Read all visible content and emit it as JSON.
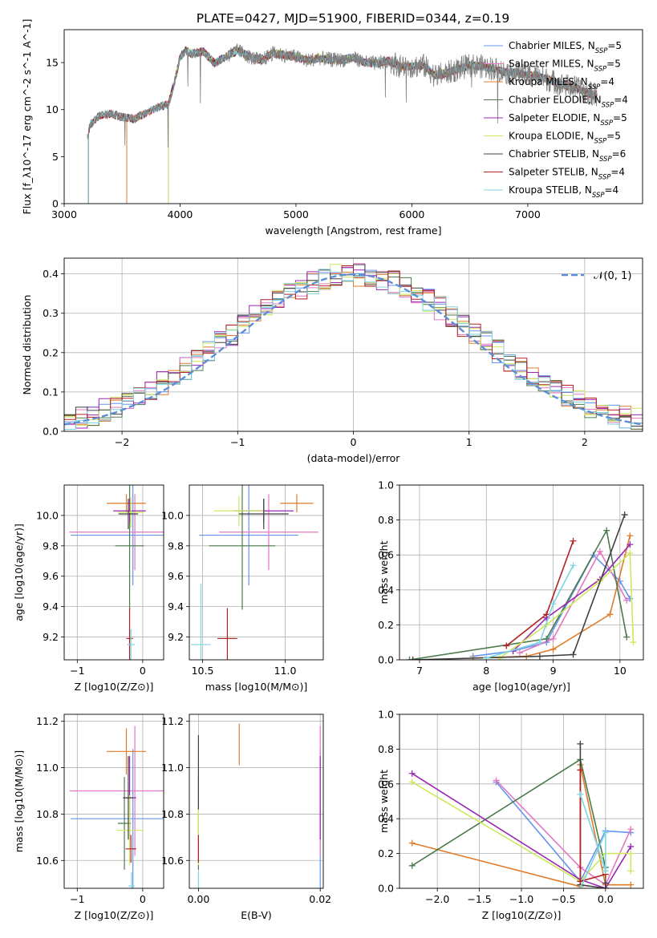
{
  "figure": {
    "title": "PLATE=0427, MJD=51900, FIBERID=0344, z=0.19"
  },
  "chart_data": [
    {
      "id": "spectrum",
      "type": "line",
      "xlabel": "wavelength [Angstrom, rest frame]",
      "ylabel": "Flux [f_λ10^-17 erg cm^-2 s^-1 A^-1]",
      "xlim": [
        3000,
        7990
      ],
      "ylim": [
        0,
        18.5
      ],
      "xticks": [
        3000,
        4000,
        5000,
        6000,
        7000
      ],
      "yticks": [
        0,
        5,
        10,
        15
      ],
      "grid": false,
      "legend_position": "right",
      "observed": {
        "x": [
          3200,
          3225,
          3300,
          3400,
          3500,
          3600,
          3700,
          3800,
          3900,
          3950,
          4000,
          4050,
          4100,
          4200,
          4300,
          4400,
          4500,
          4600,
          4700,
          4800,
          4900,
          5000,
          5100,
          5200,
          5300,
          5400,
          5500,
          5600,
          5700,
          5800,
          5900,
          6000,
          6100,
          6200,
          6300,
          6400,
          6500,
          6600,
          6700,
          6800,
          6900,
          7000,
          7100,
          7200,
          7300,
          7400,
          7500,
          7600
        ],
        "y": [
          7.2,
          8.4,
          9.3,
          9.6,
          9.2,
          9.0,
          9.6,
          10.2,
          10.6,
          12.8,
          15.6,
          16.3,
          15.9,
          16.2,
          14.9,
          15.7,
          16.3,
          15.6,
          15.2,
          16.0,
          15.8,
          15.6,
          15.2,
          15.5,
          15.3,
          15.3,
          15.5,
          15.0,
          14.9,
          15.2,
          14.6,
          14.6,
          14.7,
          13.6,
          13.9,
          14.3,
          14.7,
          14.6,
          14.4,
          14.0,
          13.9,
          13.7,
          13.5,
          13.1,
          12.6,
          12.4,
          11.8,
          11.6
        ]
      },
      "series": [
        {
          "name": "Chabrier MILES, N_SSP=5",
          "color": "#6495ed",
          "start": 3540
        },
        {
          "name": "Salpeter MILES, N_SSP=5",
          "color": "#e377c2",
          "start": 3540
        },
        {
          "name": "Kroupa MILES, N_SSP=4",
          "color": "#e07b2a",
          "start": 3540
        },
        {
          "name": "Chabrier ELODIE, N_SSP=4",
          "color": "#4c7a4c",
          "start": 3900
        },
        {
          "name": "Salpeter ELODIE, N_SSP=5",
          "color": "#9b27b0",
          "start": 3900
        },
        {
          "name": "Kroupa ELODIE, N_SSP=5",
          "color": "#cde85c",
          "start": 3900
        },
        {
          "name": "Chabrier STELIB, N_SSP=6",
          "color": "#404040",
          "start": 3210
        },
        {
          "name": "Salpeter STELIB, N_SSP=4",
          "color": "#b22222",
          "start": 3210
        },
        {
          "name": "Kroupa STELIB, N_SSP=4",
          "color": "#7fd4e0",
          "start": 3210
        }
      ]
    },
    {
      "id": "residuals",
      "type": "bar",
      "xlabel": "(data-model)/error",
      "ylabel": "Normed distribution",
      "xlim": [
        -2.5,
        2.5
      ],
      "ylim": [
        0,
        0.44
      ],
      "xticks": [
        -2,
        -1,
        0,
        1,
        2
      ],
      "yticks": [
        0.0,
        0.1,
        0.2,
        0.3,
        0.4
      ],
      "grid": true,
      "legend": "𝒩(0, 1)",
      "legend_position": "top-right",
      "bin_width": 0.1,
      "bin_start": -2.5
    },
    {
      "id": "age_vs_Z",
      "type": "scatter",
      "xlabel": "Z [log10(Z/Z⊙)]",
      "ylabel": "age  [log10(age/yr)]",
      "xlim": [
        -1.2,
        0.32
      ],
      "ylim": [
        9.05,
        10.2
      ],
      "xticks": [
        -1,
        0
      ],
      "yticks": [
        9.2,
        9.4,
        9.6,
        9.8,
        10.0
      ],
      "grid": true,
      "points": [
        {
          "x": -0.15,
          "y": 9.87,
          "xerr": 0.95,
          "yerr": 0.33,
          "color": "#6495ed"
        },
        {
          "x": -0.12,
          "y": 9.89,
          "xerr": 1.0,
          "yerr": 0.25,
          "color": "#e377c2"
        },
        {
          "x": -0.25,
          "y": 10.08,
          "xerr": 0.3,
          "yerr": 0.06,
          "color": "#e07b2a"
        },
        {
          "x": -0.2,
          "y": 9.8,
          "xerr": 0.22,
          "yerr": 0.42,
          "color": "#4c7a4c"
        },
        {
          "x": -0.2,
          "y": 10.03,
          "xerr": 0.25,
          "yerr": 0.08,
          "color": "#9b27b0"
        },
        {
          "x": -0.18,
          "y": 10.02,
          "xerr": 0.2,
          "yerr": 0.1,
          "color": "#cde85c"
        },
        {
          "x": -0.22,
          "y": 10.01,
          "xerr": 0.15,
          "yerr": 0.1,
          "color": "#404040"
        },
        {
          "x": -0.2,
          "y": 9.19,
          "xerr": 0.05,
          "yerr": 0.2,
          "color": "#b22222"
        },
        {
          "x": -0.18,
          "y": 9.15,
          "xerr": 0.06,
          "yerr": 0.1,
          "color": "#7fd4e0"
        }
      ]
    },
    {
      "id": "age_vs_mass",
      "type": "scatter",
      "xlabel": "mass [log10(M/M⊙)]",
      "ylabel": "",
      "xlim": [
        10.42,
        11.23
      ],
      "ylim": [
        9.05,
        10.2
      ],
      "xticks": [
        10.5,
        11.0
      ],
      "yticks": [
        9.2,
        9.4,
        9.6,
        9.8,
        10.0
      ],
      "grid": true,
      "points": [
        {
          "x": 10.78,
          "y": 9.87,
          "xerr": 0.3,
          "yerr": 0.33,
          "color": "#6495ed"
        },
        {
          "x": 10.9,
          "y": 9.89,
          "xerr": 0.3,
          "yerr": 0.25,
          "color": "#e377c2"
        },
        {
          "x": 11.07,
          "y": 10.08,
          "xerr": 0.1,
          "yerr": 0.06,
          "color": "#e07b2a"
        },
        {
          "x": 10.74,
          "y": 9.8,
          "xerr": 0.2,
          "yerr": 0.42,
          "color": "#4c7a4c"
        },
        {
          "x": 10.87,
          "y": 10.03,
          "xerr": 0.18,
          "yerr": 0.08,
          "color": "#9b27b0"
        },
        {
          "x": 10.72,
          "y": 10.03,
          "xerr": 0.15,
          "yerr": 0.1,
          "color": "#cde85c"
        },
        {
          "x": 10.87,
          "y": 10.01,
          "xerr": 0.15,
          "yerr": 0.1,
          "color": "#404040"
        },
        {
          "x": 10.65,
          "y": 9.19,
          "xerr": 0.06,
          "yerr": 0.2,
          "color": "#b22222"
        },
        {
          "x": 10.49,
          "y": 9.15,
          "xerr": 0.06,
          "yerr": 0.4,
          "color": "#7fd4e0"
        }
      ]
    },
    {
      "id": "weight_vs_age",
      "type": "line",
      "xlabel": "age  [log10(age/yr)]",
      "ylabel": "mass weight",
      "xlim": [
        6.7,
        10.35
      ],
      "ylim": [
        0,
        1.0
      ],
      "xticks": [
        7,
        8,
        9,
        10
      ],
      "yticks": [
        0.0,
        0.2,
        0.4,
        0.6,
        0.8,
        1.0
      ],
      "grid": true,
      "series": [
        {
          "color": "#6495ed",
          "x": [
            7.8,
            8.4,
            8.9,
            9.6,
            10.0,
            10.15
          ],
          "y": [
            0.02,
            0.05,
            0.1,
            0.6,
            0.45,
            0.35
          ]
        },
        {
          "color": "#e377c2",
          "x": [
            8.5,
            9.0,
            9.7,
            10.1
          ],
          "y": [
            0.04,
            0.12,
            0.62,
            0.34
          ]
        },
        {
          "color": "#e07b2a",
          "x": [
            7.8,
            8.6,
            9.0,
            9.85,
            10.15
          ],
          "y": [
            0.01,
            0.02,
            0.06,
            0.26,
            0.71
          ]
        },
        {
          "color": "#4c7a4c",
          "x": [
            6.85,
            8.9,
            9.8,
            10.1
          ],
          "y": [
            0.0,
            0.12,
            0.74,
            0.13
          ]
        },
        {
          "color": "#9b27b0",
          "x": [
            8.4,
            8.9,
            9.7,
            10.15
          ],
          "y": [
            0.05,
            0.24,
            0.46,
            0.66
          ]
        },
        {
          "color": "#cde85c",
          "x": [
            8.2,
            8.9,
            9.7,
            10.15,
            10.2
          ],
          "y": [
            0.01,
            0.2,
            0.45,
            0.61,
            0.1
          ]
        },
        {
          "color": "#404040",
          "x": [
            6.9,
            8.8,
            9.3,
            10.07
          ],
          "y": [
            0.0,
            0.02,
            0.03,
            0.83
          ]
        },
        {
          "color": "#b22222",
          "x": [
            8.3,
            8.9,
            9.3
          ],
          "y": [
            0.08,
            0.26,
            0.68
          ]
        },
        {
          "color": "#7fd4e0",
          "x": [
            8.0,
            8.8,
            9.0,
            9.3
          ],
          "y": [
            0.01,
            0.1,
            0.32,
            0.54
          ]
        }
      ]
    },
    {
      "id": "mass_vs_Z",
      "type": "scatter",
      "xlabel": "Z [log10(Z/Z⊙)]",
      "ylabel": "mass [log10(M/M⊙)]",
      "xlim": [
        -1.2,
        0.32
      ],
      "ylim": [
        10.48,
        11.23
      ],
      "xticks": [
        -1,
        0
      ],
      "yticks": [
        10.6,
        10.8,
        11.0,
        11.2
      ],
      "grid": true,
      "points": [
        {
          "x": -0.15,
          "y": 10.78,
          "xerr": 0.95,
          "yerr": 0.3,
          "color": "#6495ed"
        },
        {
          "x": -0.12,
          "y": 10.9,
          "xerr": 1.0,
          "yerr": 0.28,
          "color": "#e377c2"
        },
        {
          "x": -0.25,
          "y": 11.07,
          "xerr": 0.3,
          "yerr": 0.1,
          "color": "#e07b2a"
        },
        {
          "x": -0.28,
          "y": 10.76,
          "xerr": 0.1,
          "yerr": 0.2,
          "color": "#4c7a4c"
        },
        {
          "x": -0.2,
          "y": 10.87,
          "xerr": 0.1,
          "yerr": 0.18,
          "color": "#9b27b0"
        },
        {
          "x": -0.2,
          "y": 10.73,
          "xerr": 0.2,
          "yerr": 0.15,
          "color": "#cde85c"
        },
        {
          "x": -0.22,
          "y": 10.87,
          "xerr": 0.08,
          "yerr": 0.18,
          "color": "#404040"
        },
        {
          "x": -0.18,
          "y": 10.65,
          "xerr": 0.08,
          "yerr": 0.06,
          "color": "#b22222"
        },
        {
          "x": -0.17,
          "y": 10.49,
          "xerr": 0.05,
          "yerr": 0.06,
          "color": "#7fd4e0"
        }
      ]
    },
    {
      "id": "mass_vs_ebv",
      "type": "scatter",
      "xlabel": "E(B-V)",
      "ylabel": "",
      "xlim": [
        -0.0015,
        0.0205
      ],
      "ylim": [
        10.48,
        11.23
      ],
      "xticks": [
        0.0,
        0.02
      ],
      "yticks": [
        10.6,
        10.8,
        11.0,
        11.2
      ],
      "grid": true,
      "points": [
        {
          "x": 0.02,
          "y": 10.78,
          "yerr": 0.3,
          "color": "#6495ed"
        },
        {
          "x": 0.02,
          "y": 10.9,
          "yerr": 0.28,
          "color": "#e377c2"
        },
        {
          "x": 0.0067,
          "y": 11.1,
          "yerr": 0.09,
          "color": "#e07b2a"
        },
        {
          "x": 0.0,
          "y": 10.76,
          "yerr": 0.2,
          "color": "#4c7a4c"
        },
        {
          "x": 0.02,
          "y": 10.87,
          "yerr": 0.18,
          "color": "#9b27b0"
        },
        {
          "x": 0.0,
          "y": 10.73,
          "yerr": 0.15,
          "color": "#cde85c"
        },
        {
          "x": 0.0,
          "y": 10.98,
          "yerr": 0.16,
          "color": "#404040"
        },
        {
          "x": 0.0,
          "y": 10.65,
          "yerr": 0.06,
          "color": "#b22222"
        },
        {
          "x": 0.0,
          "y": 10.5,
          "yerr": 0.05,
          "color": "#7fd4e0"
        }
      ]
    },
    {
      "id": "weight_vs_Z",
      "type": "line",
      "xlabel": "Z [log10(Z/Z⊙)]",
      "ylabel": "mass weight",
      "xlim": [
        -2.45,
        0.45
      ],
      "ylim": [
        0,
        1.0
      ],
      "xticks": [
        -2.0,
        -1.5,
        -1.0,
        -0.5,
        0.0
      ],
      "yticks": [
        0.0,
        0.2,
        0.4,
        0.6,
        0.8,
        1.0
      ],
      "grid": true,
      "series": [
        {
          "color": "#6495ed",
          "x": [
            -1.3,
            -0.3,
            0.0,
            0.3
          ],
          "y": [
            0.61,
            0.04,
            0.33,
            0.32
          ]
        },
        {
          "color": "#e377c2",
          "x": [
            -1.3,
            -0.3,
            0.0,
            0.3
          ],
          "y": [
            0.62,
            0.12,
            0.02,
            0.34
          ]
        },
        {
          "color": "#e07b2a",
          "x": [
            -2.3,
            -0.3,
            -0.3,
            0.0,
            0.3
          ],
          "y": [
            0.26,
            0.01,
            0.71,
            0.02,
            0.02
          ]
        },
        {
          "color": "#4c7a4c",
          "x": [
            -2.3,
            -0.3,
            0.0,
            0.0
          ],
          "y": [
            0.13,
            0.74,
            0.12,
            0.0
          ]
        },
        {
          "color": "#9b27b0",
          "x": [
            -2.3,
            -0.3,
            0.0,
            0.3
          ],
          "y": [
            0.66,
            0.05,
            0.0,
            0.24
          ]
        },
        {
          "color": "#cde85c",
          "x": [
            -2.3,
            -0.3,
            0.0,
            0.3,
            0.3
          ],
          "y": [
            0.61,
            0.04,
            0.2,
            0.2,
            0.1
          ]
        },
        {
          "color": "#404040",
          "x": [
            -0.3,
            -0.3,
            0.0,
            0.0
          ],
          "y": [
            0.83,
            0.02,
            0.0,
            0.03
          ]
        },
        {
          "color": "#b22222",
          "x": [
            -0.3,
            -0.3,
            0.0
          ],
          "y": [
            0.68,
            0.04,
            0.08
          ]
        },
        {
          "color": "#7fd4e0",
          "x": [
            -0.3,
            0.0,
            0.0,
            -0.3
          ],
          "y": [
            0.0,
            0.32,
            0.1,
            0.54
          ]
        }
      ]
    }
  ]
}
